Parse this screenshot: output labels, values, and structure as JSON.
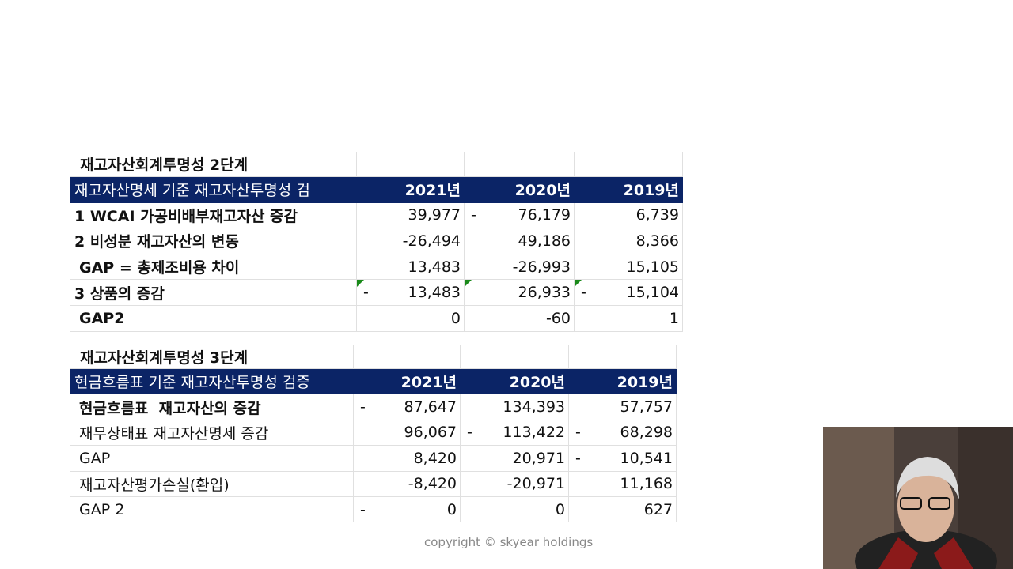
{
  "tables": [
    {
      "title": "재고자산회계투명성 2단계",
      "header": [
        "재고자산명세 기준 재고자산투명성 검",
        "2021년",
        "2020년",
        "2019년"
      ],
      "rows": [
        [
          "1 WCAI 가공비배부재고자산 증감",
          "39,977",
          {
            "pre": "-",
            "v": "76,179"
          },
          "6,739"
        ],
        [
          "2 비성분 재고자산의 변동",
          "-26,494",
          "49,186",
          "8,366"
        ],
        [
          "GAP = 총제조비용 차이",
          "13,483",
          "-26,993",
          "15,105"
        ],
        [
          "3 상품의 증감",
          {
            "pre": "-",
            "v": "13,483"
          },
          "26,933",
          {
            "pre": "-",
            "v": "15,104"
          }
        ],
        [
          "GAP2",
          "0",
          "-60",
          "1"
        ]
      ]
    },
    {
      "title": "재고자산회계투명성 3단계",
      "header": [
        "현금흐름표 기준 재고자산투명성 검증",
        "2021년",
        "2020년",
        "2019년"
      ],
      "rows": [
        [
          "현금흐름표  재고자산의 증감",
          {
            "pre": "-",
            "v": "87,647"
          },
          "134,393",
          "57,757"
        ],
        [
          "재무상태표 재고자산명세 증감",
          "96,067",
          {
            "pre": "-",
            "v": "113,422"
          },
          {
            "pre": "-",
            "v": "68,298"
          }
        ],
        [
          "GAP",
          "8,420",
          "20,971",
          {
            "pre": "-",
            "v": "10,541"
          }
        ],
        [
          "재고자산평가손실(환입)",
          "-8,420",
          "-20,971",
          "11,168"
        ],
        [
          "GAP 2",
          {
            "pre": "-",
            "v": "0"
          },
          "0",
          "627"
        ]
      ]
    }
  ],
  "copyright": "copyright © skyear holdings"
}
